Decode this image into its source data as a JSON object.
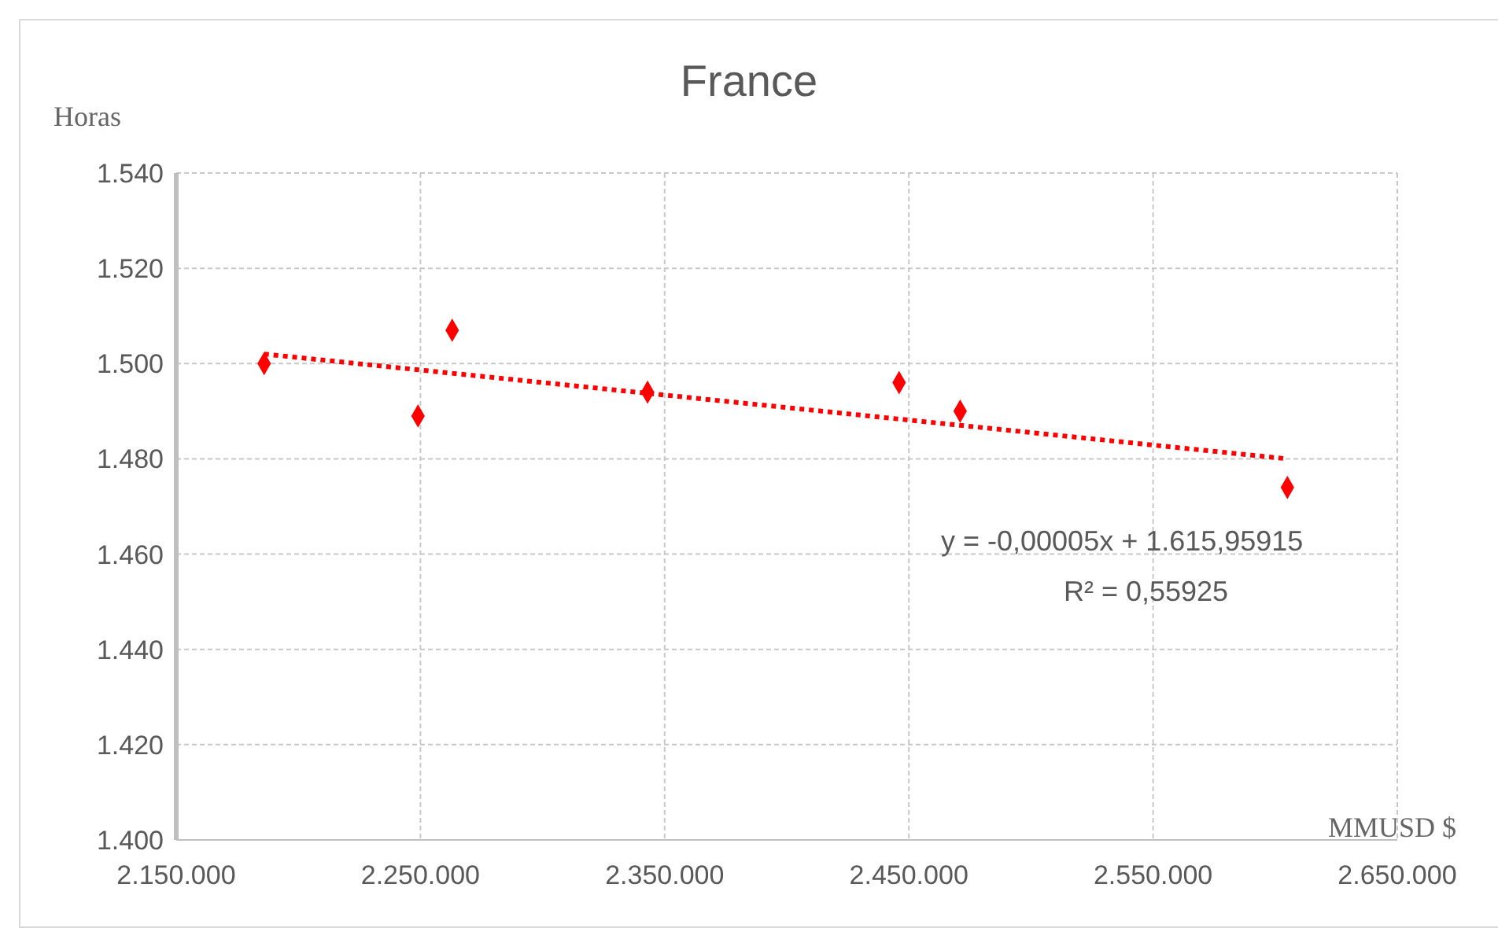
{
  "chart_data": {
    "type": "scatter",
    "title": "France",
    "ylabel": "Horas",
    "xlabel": "MMUSD $",
    "annotations": [
      "y = -0,00005x + 1.615,95915",
      "R² = 0,55925"
    ],
    "xlim": [
      2150000,
      2650000
    ],
    "xticks": [
      {
        "value": 2150000,
        "label": "2.150.000"
      },
      {
        "value": 2250000,
        "label": "2.250.000"
      },
      {
        "value": 2350000,
        "label": "2.350.000"
      },
      {
        "value": 2450000,
        "label": "2.450.000"
      },
      {
        "value": 2550000,
        "label": "2.550.000"
      },
      {
        "value": 2650000,
        "label": "2.650.000"
      }
    ],
    "ylim": [
      1400,
      1540
    ],
    "yticks": [
      {
        "value": 1400,
        "label": "1.400"
      },
      {
        "value": 1420,
        "label": "1.420"
      },
      {
        "value": 1440,
        "label": "1.440"
      },
      {
        "value": 1460,
        "label": "1.460"
      },
      {
        "value": 1480,
        "label": "1.480"
      },
      {
        "value": 1500,
        "label": "1.500"
      },
      {
        "value": 1520,
        "label": "1.520"
      },
      {
        "value": 1540,
        "label": "1.540"
      }
    ],
    "grid": true,
    "marker": "diamond",
    "series": [
      {
        "type": "scatter",
        "color": "#ff0000",
        "x": [
          2186000,
          2249000,
          2263000,
          2343000,
          2446000,
          2471000,
          2605000
        ],
        "values": [
          1500,
          1489,
          1507,
          1494,
          1496,
          1490,
          1474
        ]
      },
      {
        "type": "line",
        "color": "#ff0000",
        "line_style": "dotted",
        "marker": "none",
        "x": [
          2186000,
          2605000
        ],
        "values": [
          1502,
          1480
        ]
      }
    ]
  }
}
